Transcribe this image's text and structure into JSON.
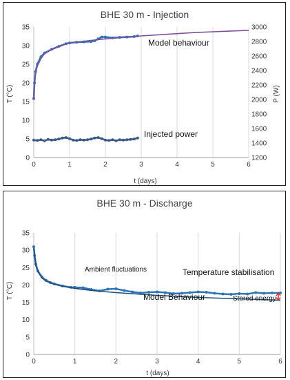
{
  "chart_data": [
    {
      "type": "line",
      "title": "BHE 30 m - Injection",
      "xlabel": "t (days)",
      "ylabel_left": "T (°C)",
      "ylabel_right": "P (W)",
      "xlim": [
        0,
        6
      ],
      "ylim_left": [
        0,
        35
      ],
      "ylim_right": [
        1200,
        3000
      ],
      "x_ticks": [
        "0",
        "1",
        "2",
        "3",
        "4",
        "5",
        "6"
      ],
      "y_ticks_left": [
        "0",
        "5",
        "10",
        "15",
        "20",
        "25",
        "30",
        "35"
      ],
      "y_ticks_right": [
        "1200",
        "1400",
        "1600",
        "1800",
        "2000",
        "2200",
        "2400",
        "2600",
        "2800",
        "3000"
      ],
      "grid": "vertical",
      "annotations": [
        "Model behaviour",
        "Injected power"
      ],
      "series": [
        {
          "axis": "left",
          "color": "#2e75b6",
          "style": "markers",
          "x": [
            0,
            0.02,
            0.05,
            0.1,
            0.2,
            0.3,
            0.5,
            0.7,
            0.9,
            1.0,
            1.2,
            1.4,
            1.6,
            1.7,
            1.8,
            1.9,
            2.0,
            2.2,
            2.4,
            2.6,
            2.8,
            2.9
          ],
          "y": [
            15.8,
            20,
            23,
            25,
            27,
            28,
            29,
            29.8,
            30.5,
            30.7,
            30.9,
            31.0,
            31.1,
            31.3,
            31.8,
            32.3,
            32.3,
            32.1,
            32.2,
            32.3,
            32.4,
            32.6
          ]
        },
        {
          "axis": "left",
          "color": "#7f4f9f",
          "style": "line",
          "x": [
            0,
            0.02,
            0.05,
            0.1,
            0.2,
            0.3,
            0.5,
            0.8,
            1.0,
            1.5,
            2.0,
            2.5,
            3.0,
            3.5,
            4.0,
            4.5,
            5.0,
            5.5,
            6.0
          ],
          "y": [
            15.5,
            19.5,
            22.5,
            24.5,
            26.5,
            27.8,
            29,
            30.2,
            30.7,
            31.3,
            31.8,
            32.2,
            32.6,
            32.9,
            33.2,
            33.5,
            33.7,
            33.9,
            34.1
          ]
        },
        {
          "axis": "right",
          "color": "#3b5a8a",
          "style": "markers",
          "x": [
            0,
            0.1,
            0.2,
            0.3,
            0.4,
            0.5,
            0.6,
            0.7,
            0.8,
            0.9,
            1.0,
            1.1,
            1.2,
            1.3,
            1.4,
            1.5,
            1.6,
            1.7,
            1.8,
            1.9,
            2.0,
            2.1,
            2.2,
            2.3,
            2.4,
            2.5,
            2.6,
            2.7,
            2.8,
            2.9
          ],
          "y": [
            1440,
            1435,
            1445,
            1430,
            1450,
            1440,
            1445,
            1455,
            1470,
            1475,
            1460,
            1440,
            1435,
            1445,
            1440,
            1445,
            1455,
            1470,
            1475,
            1460,
            1440,
            1435,
            1445,
            1430,
            1445,
            1440,
            1445,
            1450,
            1455,
            1470
          ]
        }
      ]
    },
    {
      "type": "line",
      "title": "BHE 30 m - Discharge",
      "xlabel": "t (days)",
      "ylabel_left": "T (°C)",
      "xlim": [
        0,
        6
      ],
      "ylim_left": [
        0,
        35
      ],
      "x_ticks": [
        "0",
        "1",
        "2",
        "3",
        "4",
        "5",
        "6"
      ],
      "y_ticks_left": [
        "0",
        "5",
        "10",
        "15",
        "20",
        "25",
        "30",
        "35"
      ],
      "grid": "vertical",
      "annotations": [
        "Ambient fluctuations",
        "Temperature stabilisation",
        "Model Behaviour",
        "Stored energy"
      ],
      "series": [
        {
          "axis": "left",
          "color": "#2e75b6",
          "style": "markers",
          "x": [
            0,
            0.02,
            0.05,
            0.1,
            0.2,
            0.3,
            0.4,
            0.5,
            0.7,
            0.9,
            1.0,
            1.2,
            1.4,
            1.6,
            1.8,
            2.0,
            2.2,
            2.4,
            2.6,
            2.8,
            3.0,
            3.2,
            3.4,
            3.6,
            3.8,
            4.0,
            4.2,
            4.4,
            4.6,
            4.8,
            5.0,
            5.2,
            5.4,
            5.6,
            5.8,
            6.0
          ],
          "y": [
            31,
            28.5,
            26,
            24,
            22.3,
            21.3,
            20.7,
            20.3,
            19.7,
            19.3,
            19.3,
            19.2,
            18.7,
            18.3,
            18.8,
            18.9,
            18.4,
            18.0,
            17.7,
            17.9,
            18.0,
            17.8,
            17.5,
            17.6,
            17.8,
            18.0,
            17.9,
            17.6,
            17.4,
            17.3,
            17.5,
            17.4,
            17.8,
            17.6,
            17.7,
            17.7
          ]
        },
        {
          "axis": "left",
          "color": "#1f4e79",
          "style": "line",
          "x": [
            0,
            0.05,
            0.1,
            0.2,
            0.3,
            0.5,
            0.7,
            1.0,
            1.5,
            2.0,
            2.5,
            3.0,
            3.5,
            4.0,
            4.5,
            5.0,
            5.5,
            6.0
          ],
          "y": [
            30.5,
            25.5,
            23.8,
            22.0,
            21.1,
            20.2,
            19.6,
            19.0,
            18.3,
            17.8,
            17.4,
            17.0,
            16.7,
            16.4,
            16.2,
            16.0,
            15.8,
            15.6
          ]
        }
      ],
      "stored_energy_bracket": {
        "x": 5.95,
        "y_from": 15.6,
        "y_to": 17.7,
        "color": "#d62728"
      }
    }
  ]
}
